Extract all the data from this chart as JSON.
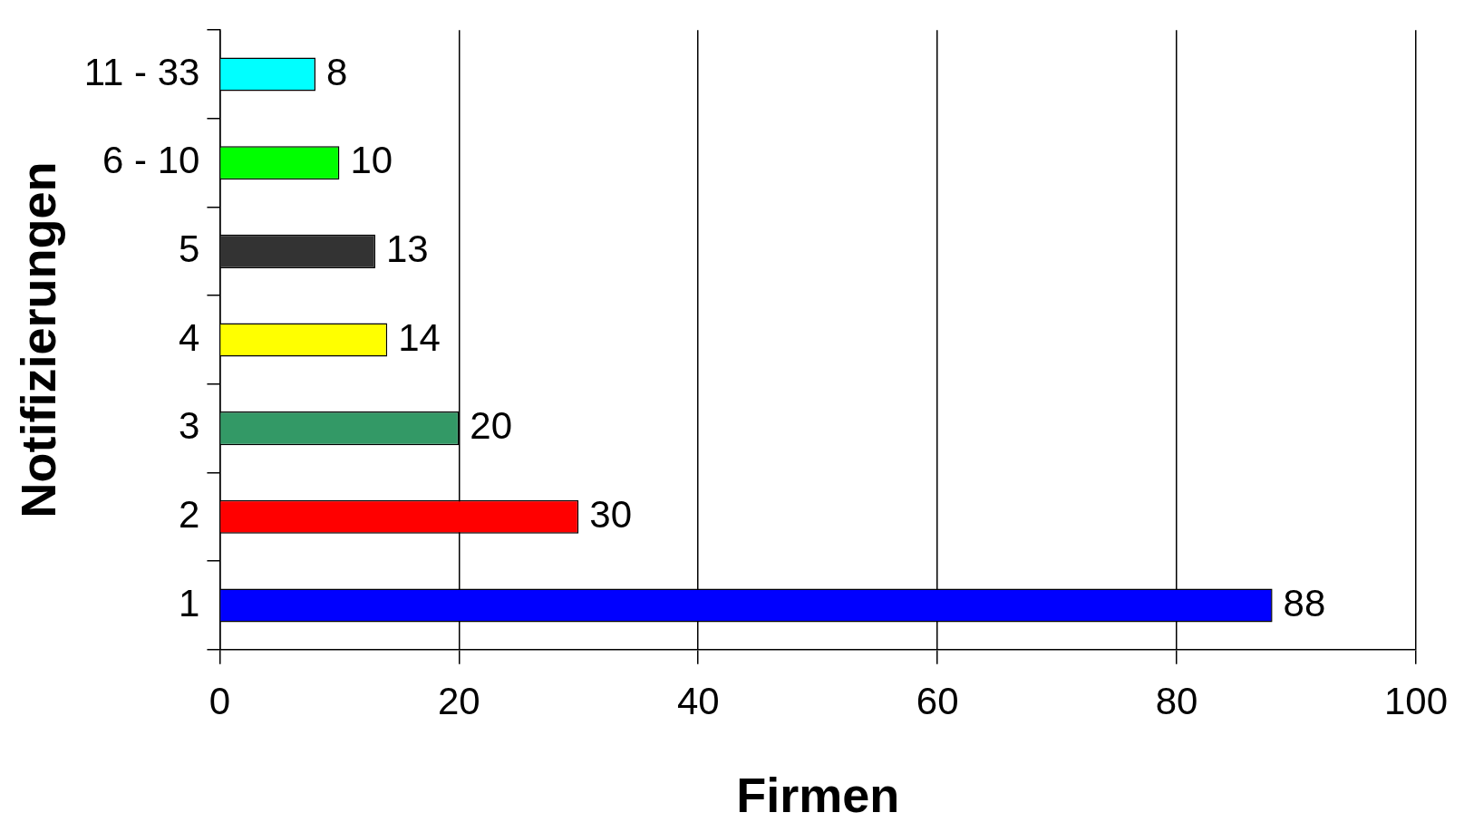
{
  "chart_data": {
    "type": "bar",
    "orientation": "horizontal",
    "xlabel": "Firmen",
    "ylabel": "Notifizierungen",
    "categories": [
      "11 - 33",
      "6 - 10",
      "5",
      "4",
      "3",
      "2",
      "1"
    ],
    "values": [
      8,
      10,
      13,
      14,
      20,
      30,
      88
    ],
    "colors": [
      "#00ffff",
      "#00ff00",
      "#333333",
      "#ffff00",
      "#339966",
      "#ff0000",
      "#0000ff"
    ],
    "xlim": [
      0,
      100
    ],
    "xticks": [
      0,
      20,
      40,
      60,
      80,
      100
    ],
    "grid": "x",
    "legend": false,
    "data_labels": true
  }
}
